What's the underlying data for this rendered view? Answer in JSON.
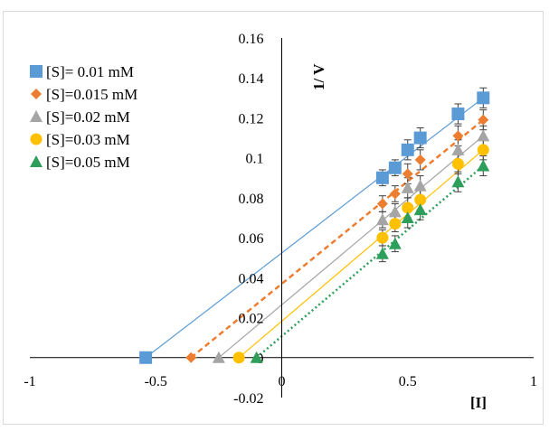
{
  "chart_data": {
    "type": "scatter",
    "title": "",
    "xlabel": "[I]",
    "ylabel": "1/ V",
    "xlim": [
      -1,
      1
    ],
    "ylim": [
      -0.02,
      0.16
    ],
    "x_ticks": [
      "-1",
      "-0.5",
      "0",
      "0.5",
      "1"
    ],
    "y_ticks": [
      "-0.02",
      "0",
      "0.02",
      "0.04",
      "0.06",
      "0.08",
      "0.1",
      "0.12",
      "0.14",
      "0.16"
    ],
    "grid": false,
    "legend_position": "top-left",
    "series": [
      {
        "name": "[S]= 0.01 mM",
        "color": "#5b9bd5",
        "marker": "square",
        "line_style": "solid",
        "points": [
          {
            "x": 0.4,
            "y": 0.09,
            "err": 0.004
          },
          {
            "x": 0.45,
            "y": 0.095,
            "err": 0.004
          },
          {
            "x": 0.5,
            "y": 0.104,
            "err": 0.005
          },
          {
            "x": 0.55,
            "y": 0.11,
            "err": 0.005
          },
          {
            "x": 0.7,
            "y": 0.122,
            "err": 0.005
          },
          {
            "x": 0.8,
            "y": 0.13,
            "err": 0.005
          }
        ],
        "x_intercept": -0.54,
        "fit": [
          [
            -0.54,
            0
          ],
          [
            0.8,
            0.13
          ]
        ]
      },
      {
        "name": "[S]=0.015 mM",
        "color": "#ed7d31",
        "marker": "diamond",
        "line_style": "dashed",
        "points": [
          {
            "x": 0.4,
            "y": 0.077,
            "err": 0.004
          },
          {
            "x": 0.45,
            "y": 0.082,
            "err": 0.004
          },
          {
            "x": 0.5,
            "y": 0.092,
            "err": 0.005
          },
          {
            "x": 0.55,
            "y": 0.099,
            "err": 0.005
          },
          {
            "x": 0.7,
            "y": 0.111,
            "err": 0.005
          },
          {
            "x": 0.8,
            "y": 0.119,
            "err": 0.005
          }
        ],
        "x_intercept": -0.36,
        "fit": [
          [
            -0.36,
            0
          ],
          [
            0.8,
            0.119
          ]
        ]
      },
      {
        "name": "[S]=0.02 mM",
        "color": "#a5a5a5",
        "marker": "triangle",
        "line_style": "solid",
        "points": [
          {
            "x": 0.4,
            "y": 0.069,
            "err": 0.004
          },
          {
            "x": 0.45,
            "y": 0.073,
            "err": 0.004
          },
          {
            "x": 0.5,
            "y": 0.085,
            "err": 0.005
          },
          {
            "x": 0.55,
            "y": 0.086,
            "err": 0.005
          },
          {
            "x": 0.7,
            "y": 0.104,
            "err": 0.005
          },
          {
            "x": 0.8,
            "y": 0.111,
            "err": 0.005
          }
        ],
        "x_intercept": -0.25,
        "fit": [
          [
            -0.25,
            0
          ],
          [
            0.8,
            0.111
          ]
        ]
      },
      {
        "name": "[S]=0.03 mM",
        "color": "#ffc000",
        "marker": "circle",
        "line_style": "solid",
        "points": [
          {
            "x": 0.4,
            "y": 0.06,
            "err": 0.004
          },
          {
            "x": 0.45,
            "y": 0.067,
            "err": 0.004
          },
          {
            "x": 0.5,
            "y": 0.075,
            "err": 0.005
          },
          {
            "x": 0.55,
            "y": 0.079,
            "err": 0.005
          },
          {
            "x": 0.7,
            "y": 0.097,
            "err": 0.005
          },
          {
            "x": 0.8,
            "y": 0.104,
            "err": 0.005
          }
        ],
        "x_intercept": -0.17,
        "fit": [
          [
            -0.17,
            0
          ],
          [
            0.8,
            0.104
          ]
        ]
      },
      {
        "name": "[S]=0.05 mM",
        "color": "#2e9e5b",
        "marker": "triangle",
        "line_style": "dotted",
        "points": [
          {
            "x": 0.4,
            "y": 0.052,
            "err": 0.004
          },
          {
            "x": 0.45,
            "y": 0.057,
            "err": 0.004
          },
          {
            "x": 0.5,
            "y": 0.07,
            "err": 0.005
          },
          {
            "x": 0.55,
            "y": 0.074,
            "err": 0.005
          },
          {
            "x": 0.7,
            "y": 0.088,
            "err": 0.005
          },
          {
            "x": 0.8,
            "y": 0.096,
            "err": 0.005
          }
        ],
        "x_intercept": -0.1,
        "fit": [
          [
            -0.1,
            0
          ],
          [
            0.8,
            0.096
          ]
        ]
      }
    ]
  }
}
